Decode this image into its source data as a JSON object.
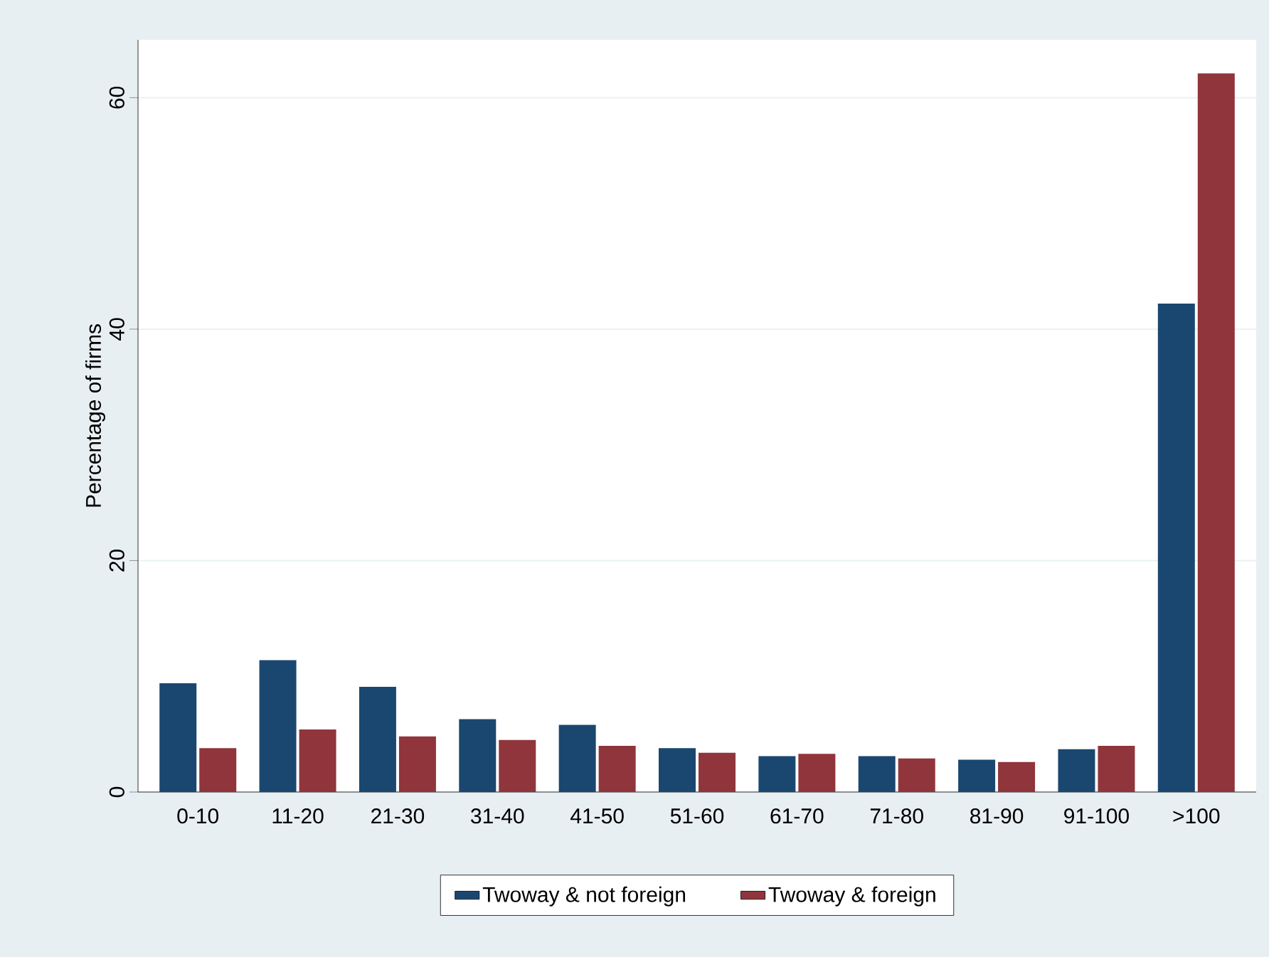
{
  "chart_data": {
    "type": "bar",
    "ylabel": "Percentage of firms",
    "categories": [
      "0-10",
      "11-20",
      "21-30",
      "31-40",
      "41-50",
      "51-60",
      "61-70",
      "71-80",
      "81-90",
      "91-100",
      ">100"
    ],
    "series": [
      {
        "name": "Twoway & not foreign",
        "color": "#1a476f",
        "values": [
          9.4,
          11.4,
          9.1,
          6.3,
          5.8,
          3.8,
          3.1,
          3.1,
          2.8,
          3.7,
          42.2
        ]
      },
      {
        "name": "Twoway & foreign",
        "color": "#90353b",
        "values": [
          3.8,
          5.4,
          4.8,
          4.5,
          4.0,
          3.4,
          3.3,
          2.9,
          2.6,
          4.0,
          62.1
        ]
      }
    ],
    "ylim": [
      0,
      65
    ],
    "yticks": [
      0,
      20,
      40,
      60
    ],
    "grid": "y",
    "legend": "bottom"
  }
}
